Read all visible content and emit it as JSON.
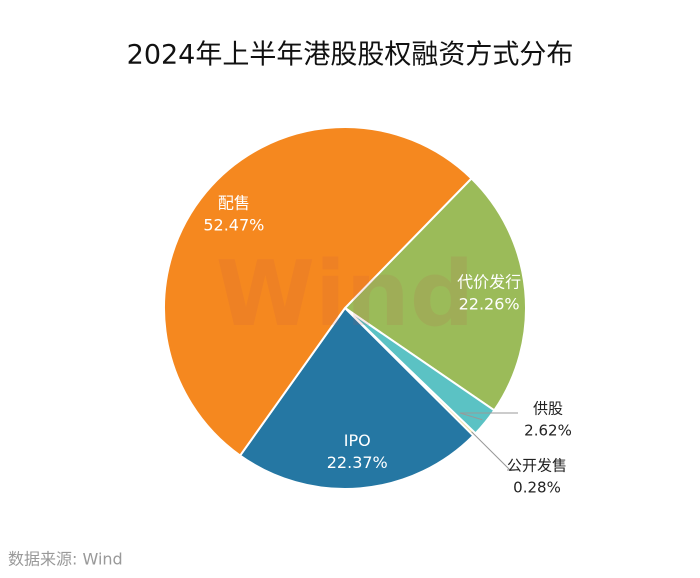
{
  "chart_data": {
    "type": "pie",
    "title": "2024年上半年港股股权融资方式分布",
    "categories": [
      "代价发行",
      "供股",
      "公开发售",
      "IPO",
      "配售"
    ],
    "values": [
      22.26,
      2.62,
      0.28,
      22.37,
      52.47
    ],
    "value_labels": [
      "22.26%",
      "2.62%",
      "0.28%",
      "22.37%",
      "52.47%"
    ],
    "colors": [
      "#9bbb59",
      "#5bc2c4",
      "#f2dfa0",
      "#2577a3",
      "#f5881f"
    ],
    "watermark": "Wind",
    "source": "数据来源: Wind"
  }
}
